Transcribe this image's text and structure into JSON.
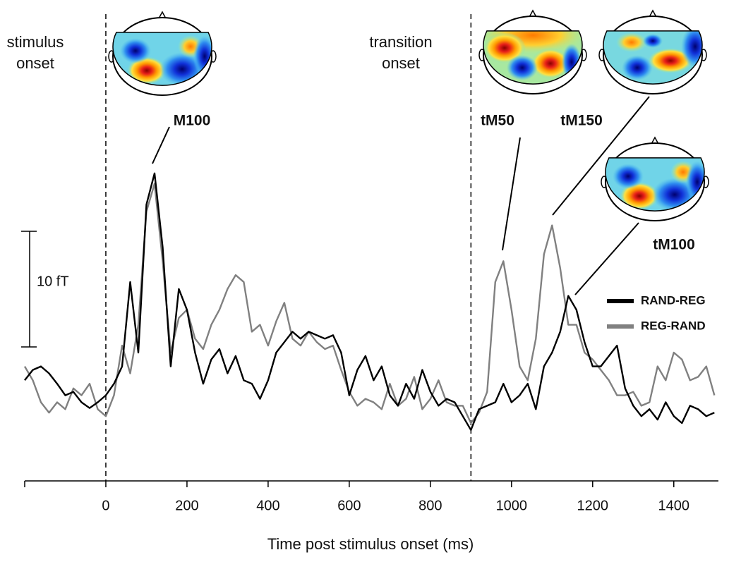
{
  "chart_data": {
    "type": "line",
    "xlabel": "Time post stimulus onset (ms)",
    "xlim": [
      -200,
      1510
    ],
    "xticks": [
      0,
      200,
      400,
      600,
      800,
      1000,
      1200,
      1400
    ],
    "ylim": [
      0,
      35
    ],
    "scale_bar": {
      "value": 10,
      "label": "10 fT"
    },
    "markers": [
      {
        "x": 0,
        "label": "stimulus onset"
      },
      {
        "x": 900,
        "label": "transition onset"
      }
    ],
    "annotations": [
      "M100",
      "tM50",
      "tM150",
      "tM100"
    ],
    "legend": "right",
    "x": [
      -200,
      -180,
      -160,
      -140,
      -120,
      -100,
      -80,
      -60,
      -40,
      -20,
      0,
      20,
      40,
      60,
      80,
      100,
      120,
      140,
      160,
      180,
      200,
      220,
      240,
      260,
      280,
      300,
      320,
      340,
      360,
      380,
      400,
      420,
      440,
      460,
      480,
      500,
      520,
      540,
      560,
      580,
      600,
      620,
      640,
      660,
      680,
      700,
      720,
      740,
      760,
      780,
      800,
      820,
      840,
      860,
      880,
      900,
      920,
      940,
      960,
      980,
      1000,
      1020,
      1040,
      1060,
      1080,
      1100,
      1120,
      1140,
      1160,
      1180,
      1200,
      1220,
      1240,
      1260,
      1280,
      1300,
      1320,
      1340,
      1360,
      1380,
      1400,
      1420,
      1440,
      1460,
      1480,
      1500
    ],
    "series": [
      {
        "name": "RAND-REG",
        "color": "#000000",
        "values": [
          8.7,
          9.6,
          9.9,
          9.3,
          8.4,
          7.4,
          7.7,
          6.8,
          6.3,
          6.8,
          7.4,
          8.4,
          9.9,
          17.2,
          11.1,
          23.9,
          26.6,
          20.2,
          9.9,
          16.6,
          14.8,
          11.1,
          8.4,
          10.5,
          11.4,
          9.3,
          10.8,
          8.7,
          8.4,
          7.1,
          8.7,
          11.1,
          12.0,
          12.9,
          12.3,
          12.9,
          12.6,
          12.3,
          12.6,
          11.1,
          7.4,
          9.6,
          10.8,
          8.7,
          9.9,
          7.4,
          6.5,
          8.4,
          7.1,
          9.6,
          7.7,
          6.5,
          7.1,
          6.8,
          5.6,
          4.4,
          6.2,
          6.5,
          6.8,
          8.4,
          6.8,
          7.4,
          8.4,
          6.2,
          9.9,
          11.1,
          12.9,
          16.0,
          14.8,
          12.0,
          9.9,
          9.9,
          10.8,
          11.7,
          8.0,
          6.5,
          5.6,
          6.2,
          5.3,
          6.8,
          5.6,
          5.0,
          6.5,
          6.2,
          5.6,
          5.9
        ]
      },
      {
        "name": "REG-RAND",
        "color": "#808080",
        "values": [
          9.9,
          8.7,
          6.8,
          5.9,
          6.8,
          6.2,
          8.0,
          7.4,
          8.4,
          6.2,
          5.6,
          7.4,
          11.7,
          9.3,
          13.5,
          23.3,
          25.7,
          19.0,
          11.1,
          14.1,
          14.8,
          12.3,
          11.4,
          13.5,
          14.8,
          16.6,
          17.8,
          17.2,
          12.9,
          13.5,
          11.7,
          13.8,
          15.4,
          12.3,
          11.7,
          12.9,
          12.0,
          11.4,
          11.7,
          9.6,
          7.7,
          6.5,
          7.1,
          6.8,
          6.2,
          8.4,
          6.5,
          7.1,
          9.0,
          6.2,
          7.1,
          8.7,
          6.8,
          6.5,
          6.5,
          5.0,
          5.9,
          7.7,
          17.2,
          19.0,
          14.8,
          9.9,
          8.7,
          12.3,
          19.6,
          22.1,
          18.4,
          13.5,
          13.5,
          11.1,
          10.5,
          9.6,
          8.7,
          7.4,
          7.4,
          7.7,
          6.5,
          6.8,
          9.9,
          8.7,
          11.1,
          10.5,
          8.7,
          9.0,
          9.9,
          7.4
        ]
      }
    ]
  }
}
